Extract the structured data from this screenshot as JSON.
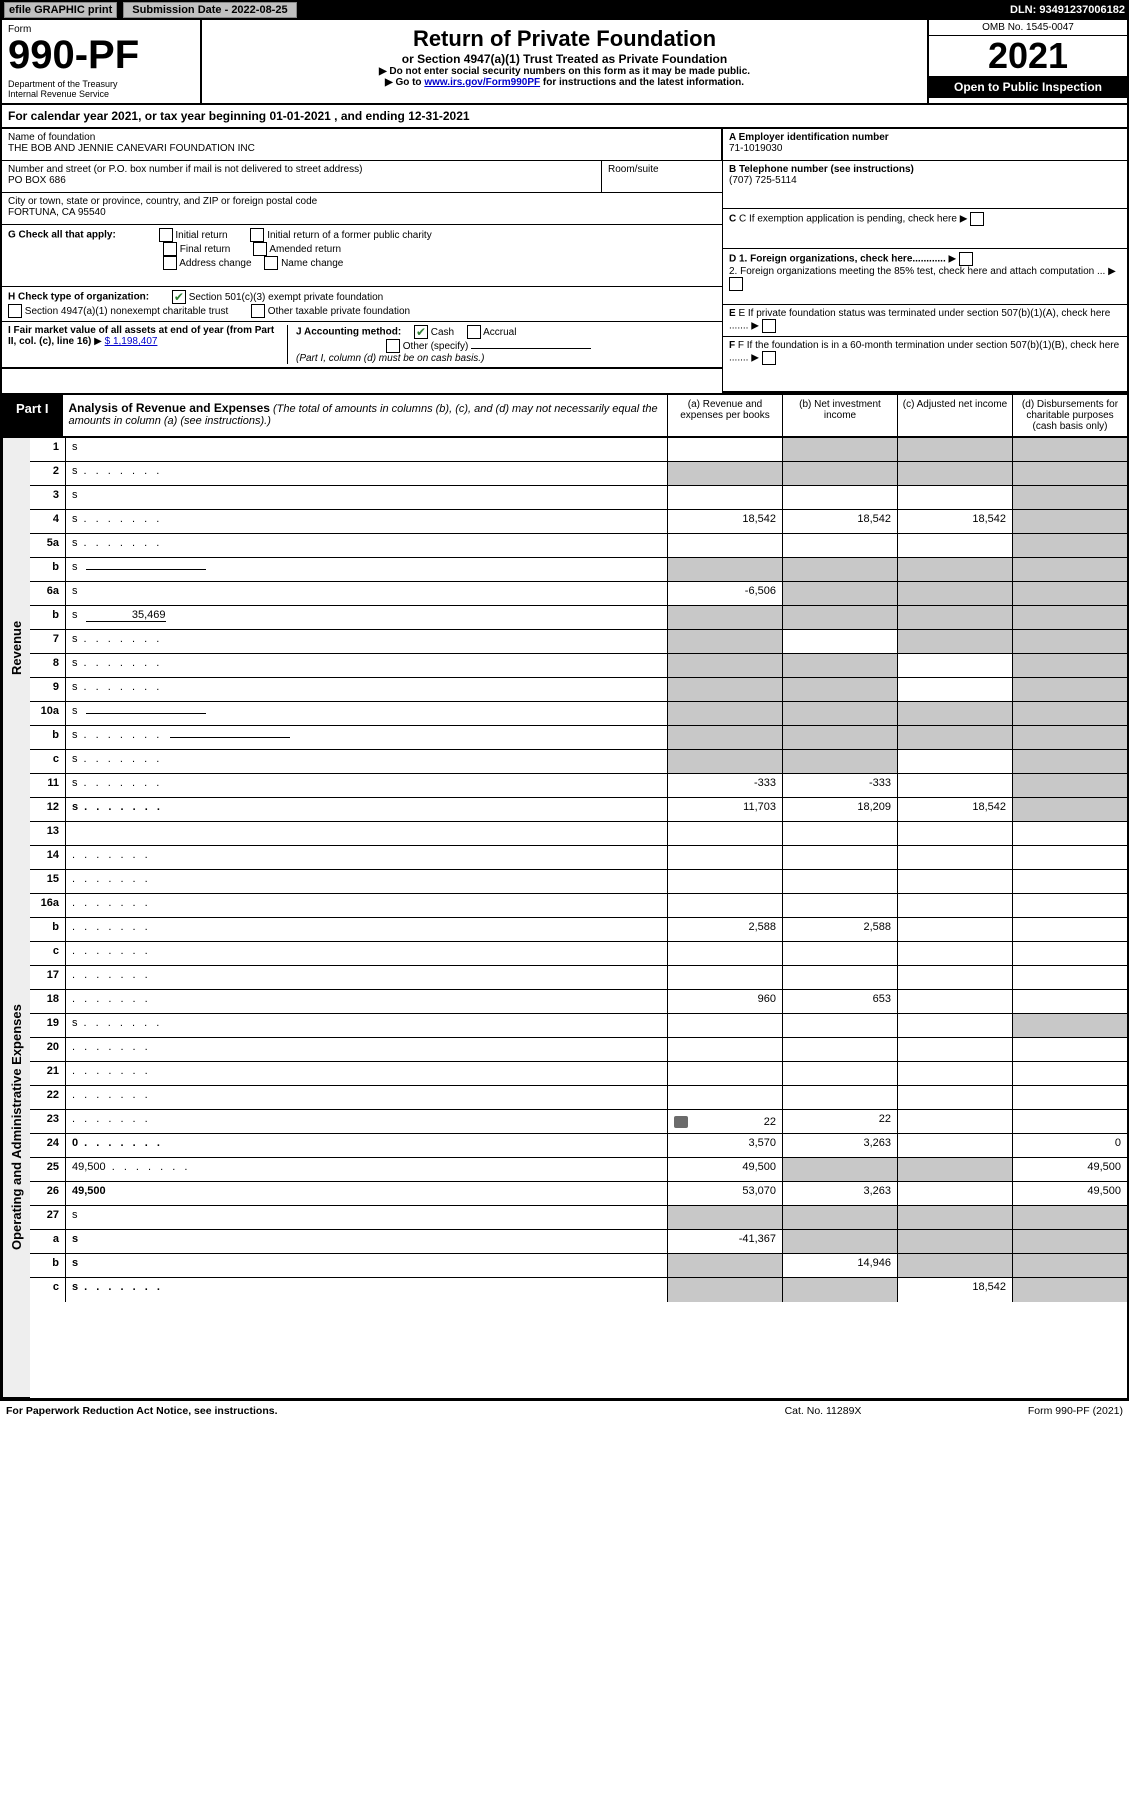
{
  "top": {
    "efile": "efile GRAPHIC print",
    "submission_label": "Submission Date - 2022-08-25",
    "dln": "DLN: 93491237006182"
  },
  "header": {
    "form_label": "Form",
    "form_no": "990-PF",
    "dept": "Department of the Treasury\nInternal Revenue Service",
    "title": "Return of Private Foundation",
    "subtitle": "or Section 4947(a)(1) Trust Treated as Private Foundation",
    "instr1": "▶ Do not enter social security numbers on this form as it may be made public.",
    "instr2_pre": "▶ Go to ",
    "instr2_link": "www.irs.gov/Form990PF",
    "instr2_post": " for instructions and the latest information.",
    "omb": "OMB No. 1545-0047",
    "year": "2021",
    "open": "Open to Public Inspection"
  },
  "calyear": {
    "text_pre": "For calendar year 2021, or tax year beginning ",
    "begin": "01-01-2021",
    "mid": " , and ending ",
    "end": "12-31-2021"
  },
  "info": {
    "name_label": "Name of foundation",
    "name": "THE BOB AND JENNIE CANEVARI FOUNDATION INC",
    "addr_label": "Number and street (or P.O. box number if mail is not delivered to street address)",
    "addr": "PO BOX 686",
    "room_label": "Room/suite",
    "city_label": "City or town, state or province, country, and ZIP or foreign postal code",
    "city": "FORTUNA, CA  95540",
    "ein_label": "A Employer identification number",
    "ein": "71-1019030",
    "phone_label": "B Telephone number (see instructions)",
    "phone": "(707) 725-5114",
    "c_label": "C If exemption application is pending, check here",
    "d1": "D 1. Foreign organizations, check here............",
    "d2": "2. Foreign organizations meeting the 85% test, check here and attach computation ...",
    "e": "E  If private foundation status was terminated under section 507(b)(1)(A), check here .......",
    "f": "F  If the foundation is in a 60-month termination under section 507(b)(1)(B), check here .......",
    "g_label": "G Check all that apply:",
    "g_opts": [
      "Initial return",
      "Initial return of a former public charity",
      "Final return",
      "Amended return",
      "Address change",
      "Name change"
    ],
    "h_label": "H Check type of organization:",
    "h_opts": [
      "Section 501(c)(3) exempt private foundation",
      "Section 4947(a)(1) nonexempt charitable trust",
      "Other taxable private foundation"
    ],
    "i_label": "I Fair market value of all assets at end of year (from Part II, col. (c), line 16)",
    "i_val": "$  1,198,407",
    "j_label": "J Accounting method:",
    "j_opts": [
      "Cash",
      "Accrual",
      "Other (specify)"
    ],
    "j_note": "(Part I, column (d) must be on cash basis.)"
  },
  "part1": {
    "badge": "Part I",
    "title": "Analysis of Revenue and Expenses",
    "title_note": "(The total of amounts in columns (b), (c), and (d) may not necessarily equal the amounts in column (a) (see instructions).)",
    "cols": {
      "a": "(a) Revenue and expenses per books",
      "b": "(b) Net investment income",
      "c": "(c) Adjusted net income",
      "d": "(d) Disbursements for charitable purposes (cash basis only)"
    }
  },
  "sides": {
    "revenue": "Revenue",
    "expenses": "Operating and Administrative Expenses"
  },
  "rows": [
    {
      "n": "1",
      "d": "s",
      "a": "",
      "b": "s",
      "c": "s"
    },
    {
      "n": "2",
      "d": "s",
      "dots": true,
      "a": "s",
      "b": "s",
      "c": "s"
    },
    {
      "n": "3",
      "d": "s",
      "a": "",
      "b": "",
      "c": ""
    },
    {
      "n": "4",
      "d": "s",
      "dots": true,
      "a": "18,542",
      "b": "18,542",
      "c": "18,542"
    },
    {
      "n": "5a",
      "d": "s",
      "dots": true,
      "a": "",
      "b": "",
      "c": ""
    },
    {
      "n": "b",
      "d": "s",
      "inline": true,
      "a": "s",
      "b": "s",
      "c": "s"
    },
    {
      "n": "6a",
      "d": "s",
      "a": "-6,506",
      "b": "s",
      "c": "s"
    },
    {
      "n": "b",
      "d": "s",
      "inline_val": "35,469",
      "a": "s",
      "b": "s",
      "c": "s"
    },
    {
      "n": "7",
      "d": "s",
      "dots": true,
      "a": "s",
      "b": "",
      "c": "s"
    },
    {
      "n": "8",
      "d": "s",
      "dots": true,
      "a": "s",
      "b": "s",
      "c": ""
    },
    {
      "n": "9",
      "d": "s",
      "dots": true,
      "a": "s",
      "b": "s",
      "c": ""
    },
    {
      "n": "10a",
      "d": "s",
      "inline": true,
      "a": "s",
      "b": "s",
      "c": "s"
    },
    {
      "n": "b",
      "d": "s",
      "dots": true,
      "inline": true,
      "a": "s",
      "b": "s",
      "c": "s"
    },
    {
      "n": "c",
      "d": "s",
      "dots": true,
      "a": "s",
      "b": "s",
      "c": ""
    },
    {
      "n": "11",
      "d": "s",
      "dots": true,
      "a": "-333",
      "b": "-333",
      "c": ""
    },
    {
      "n": "12",
      "d": "s",
      "dots": true,
      "bold": true,
      "a": "11,703",
      "b": "18,209",
      "c": "18,542"
    },
    {
      "n": "13",
      "d": "",
      "a": "",
      "b": "",
      "c": ""
    },
    {
      "n": "14",
      "d": "",
      "dots": true,
      "a": "",
      "b": "",
      "c": ""
    },
    {
      "n": "15",
      "d": "",
      "dots": true,
      "a": "",
      "b": "",
      "c": ""
    },
    {
      "n": "16a",
      "d": "",
      "dots": true,
      "a": "",
      "b": "",
      "c": ""
    },
    {
      "n": "b",
      "d": "",
      "dots": true,
      "a": "2,588",
      "b": "2,588",
      "c": ""
    },
    {
      "n": "c",
      "d": "",
      "dots": true,
      "a": "",
      "b": "",
      "c": ""
    },
    {
      "n": "17",
      "d": "",
      "dots": true,
      "a": "",
      "b": "",
      "c": ""
    },
    {
      "n": "18",
      "d": "",
      "dots": true,
      "a": "960",
      "b": "653",
      "c": ""
    },
    {
      "n": "19",
      "d": "s",
      "dots": true,
      "a": "",
      "b": "",
      "c": ""
    },
    {
      "n": "20",
      "d": "",
      "dots": true,
      "a": "",
      "b": "",
      "c": ""
    },
    {
      "n": "21",
      "d": "",
      "dots": true,
      "a": "",
      "b": "",
      "c": ""
    },
    {
      "n": "22",
      "d": "",
      "dots": true,
      "a": "",
      "b": "",
      "c": ""
    },
    {
      "n": "23",
      "d": "",
      "dots": true,
      "icon": true,
      "a": "22",
      "b": "22",
      "c": ""
    },
    {
      "n": "24",
      "d": "0",
      "dots": true,
      "bold": true,
      "a": "3,570",
      "b": "3,263",
      "c": ""
    },
    {
      "n": "25",
      "d": "49,500",
      "dots": true,
      "a": "49,500",
      "b": "s",
      "c": "s"
    },
    {
      "n": "26",
      "d": "49,500",
      "bold": true,
      "a": "53,070",
      "b": "3,263",
      "c": ""
    },
    {
      "n": "27",
      "d": "s",
      "a": "s",
      "b": "s",
      "c": "s"
    },
    {
      "n": "a",
      "d": "s",
      "bold": true,
      "a": "-41,367",
      "b": "s",
      "c": "s"
    },
    {
      "n": "b",
      "d": "s",
      "bold": true,
      "a": "s",
      "b": "14,946",
      "c": "s"
    },
    {
      "n": "c",
      "d": "s",
      "dots": true,
      "bold": true,
      "a": "s",
      "b": "s",
      "c": "18,542"
    }
  ],
  "footer": {
    "left": "For Paperwork Reduction Act Notice, see instructions.",
    "mid": "Cat. No. 11289X",
    "right": "Form 990-PF (2021)"
  }
}
